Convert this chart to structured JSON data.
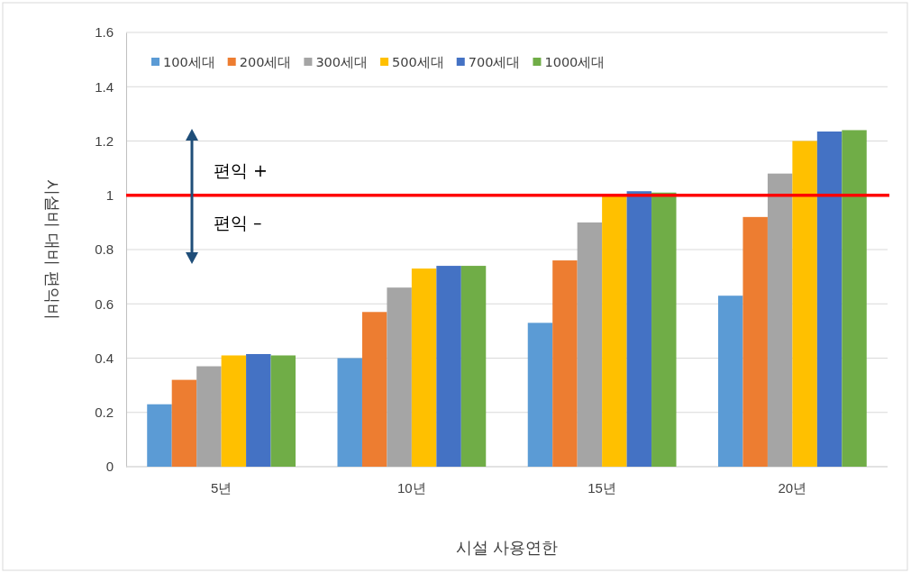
{
  "chart_data": {
    "type": "bar",
    "xlabel": "시설 사용연한",
    "ylabel": "시설비 대비 편익비",
    "categories": [
      "5년",
      "10년",
      "15년",
      "20년"
    ],
    "series": [
      {
        "name": "100세대",
        "color": "#5b9bd5",
        "values": [
          0.23,
          0.4,
          0.53,
          0.63
        ]
      },
      {
        "name": "200세대",
        "color": "#ed7d31",
        "values": [
          0.32,
          0.57,
          0.76,
          0.92
        ]
      },
      {
        "name": "300세대",
        "color": "#a5a5a5",
        "values": [
          0.37,
          0.66,
          0.9,
          1.08
        ]
      },
      {
        "name": "500세대",
        "color": "#ffc000",
        "values": [
          0.41,
          0.73,
          1.0,
          1.2
        ]
      },
      {
        "name": "700세대",
        "color": "#4472c4",
        "values": [
          0.415,
          0.74,
          1.015,
          1.235
        ]
      },
      {
        "name": "1000세대",
        "color": "#70ad47",
        "values": [
          0.41,
          0.74,
          1.01,
          1.24
        ]
      }
    ],
    "ylim": [
      0,
      1.6
    ],
    "yticks": [
      0,
      0.2,
      0.4,
      0.6,
      0.8,
      {
        "value": 1,
        "label": "1"
      },
      1.2,
      1.4,
      1.6
    ],
    "grid": "y",
    "legend": "top",
    "ref_lines": [
      {
        "axis": "y",
        "value": 1,
        "color": "#ff0000"
      }
    ],
    "annotations": [
      "편익 +",
      "편익 –"
    ]
  }
}
